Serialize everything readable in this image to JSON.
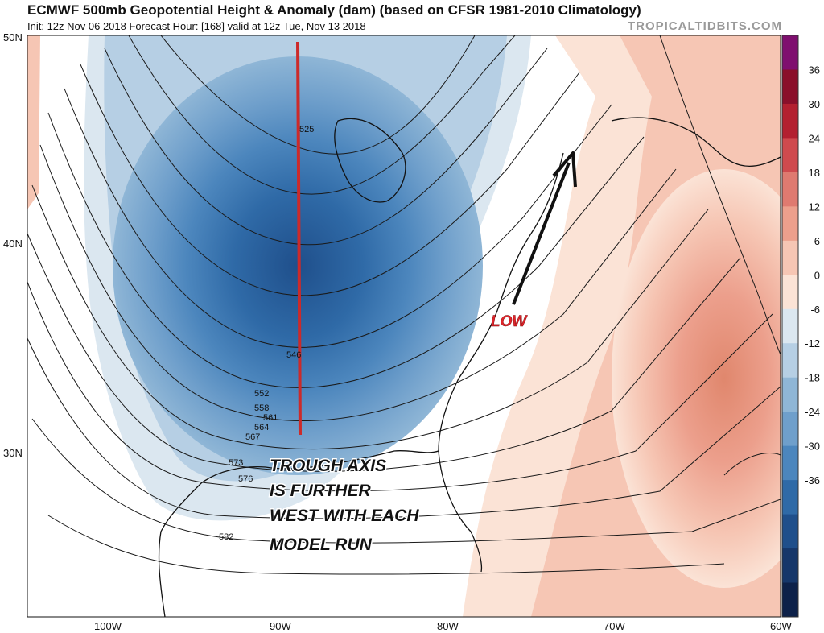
{
  "header": {
    "title": "ECMWF 500mb Geopotential Height & Anomaly (dam) (based on CFSR 1981-2010 Climatology)",
    "subtitle": "Init: 12z Nov 06 2018   Forecast Hour: [168]   valid at 12z Tue, Nov 13 2018",
    "credit": "TROPICALTIDBITS.COM"
  },
  "map": {
    "latitude_labels": [
      "50N",
      "40N",
      "30N"
    ],
    "longitude_labels": [
      "100W",
      "90W",
      "80W",
      "70W",
      "60W"
    ],
    "contour_labels": [
      "525",
      "546",
      "552",
      "558",
      "561",
      "564",
      "567",
      "573",
      "576",
      "582"
    ]
  },
  "colorbar": {
    "ticks": [
      "36",
      "30",
      "24",
      "18",
      "12",
      "6",
      "0",
      "-6",
      "-12",
      "-18",
      "-24",
      "-30",
      "-36"
    ],
    "colors": [
      "#7f0f6f",
      "#8a0f2a",
      "#b32030",
      "#cf4a4e",
      "#df7a70",
      "#ec9f8c",
      "#f6c6b4",
      "#fbe3d6",
      "#dbe7f0",
      "#b6cfe4",
      "#8fb6d6",
      "#6f9fcb",
      "#4c86bd",
      "#2f6aa7",
      "#1f4f8b",
      "#16376a",
      "#0d2149"
    ]
  },
  "annotations": {
    "trough_text": [
      "TROUGH AXIS",
      "IS FURTHER",
      "WEST WITH EACH",
      "MODEL RUN"
    ],
    "low_text": "LOW",
    "trough_line_color": "#cc2a2a",
    "low_color": "#e0252b",
    "arrow_color": "#111111"
  }
}
